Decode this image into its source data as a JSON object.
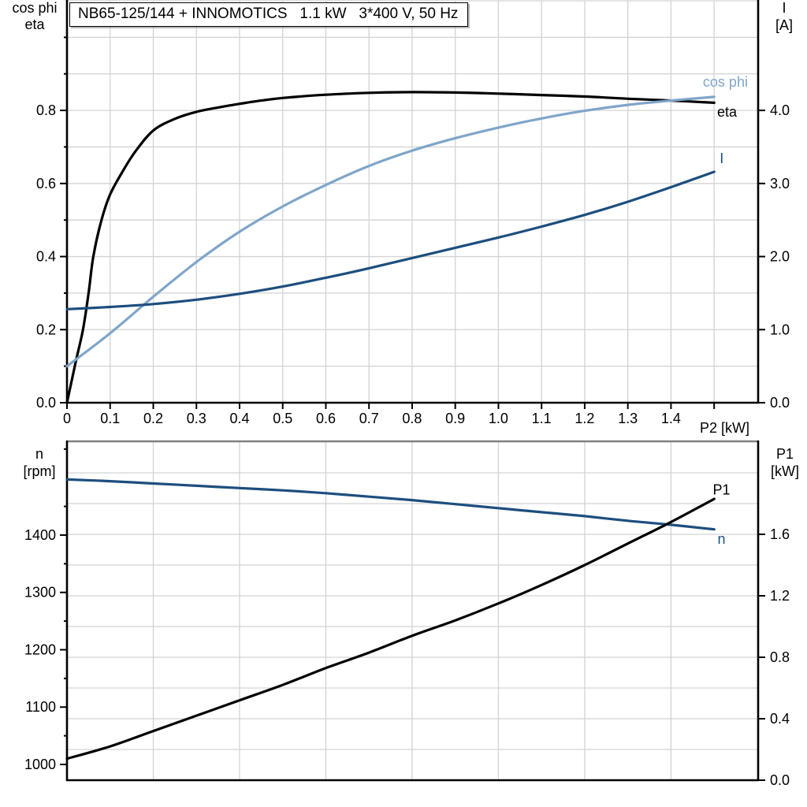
{
  "title": "NB65-125/144 + INNOMOTICS   1.1 kW   3*400 V, 50 Hz",
  "colors": {
    "black": "#000000",
    "light_blue": "#7FA5C9",
    "dark_blue": "#1C4E7E",
    "grid": "#D3D3D3",
    "plot_border_gray": "#808080"
  },
  "chart_data": [
    {
      "type": "line",
      "x_axis": {
        "label": "P2 [kW]",
        "range": [
          0,
          1.602
        ],
        "grid_interval": 0.1,
        "ticks": [
          0,
          0.1,
          0.2,
          0.3,
          0.4,
          0.5,
          0.6,
          0.7,
          0.8,
          0.9,
          1.0,
          1.1,
          1.2,
          1.3,
          1.4,
          1.5
        ],
        "tick_labels": [
          "0",
          "0.1",
          "0.2",
          "0.3",
          "0.4",
          "0.5",
          "0.6",
          "0.7",
          "0.8",
          "0.9",
          "1.0",
          "1.1",
          "1.2",
          "1.3",
          "1.4",
          ""
        ]
      },
      "left_axis": {
        "label_lines": [
          "cos phi",
          "eta"
        ],
        "range": [
          0,
          1.1
        ],
        "grid_interval": 0.1,
        "major_ticks": [
          0,
          0.2,
          0.4,
          0.6,
          0.8
        ],
        "tick_labels": [
          "0.0",
          "0.2",
          "0.4",
          "0.6",
          "0.8"
        ],
        "minor_ticks": [
          0.1,
          0.3,
          0.5,
          0.7,
          0.9,
          1.0
        ]
      },
      "right_axis": {
        "label_lines": [
          "I",
          "[A]"
        ],
        "range": [
          0,
          5.5
        ],
        "major_ticks": [
          0,
          1,
          2,
          3,
          4
        ],
        "tick_labels": [
          "0.0",
          "1.0",
          "2.0",
          "3.0",
          "4.0"
        ],
        "minor_ticks": []
      },
      "series": [
        {
          "name": "eta",
          "label": "eta",
          "color": "#000000",
          "axis": "left",
          "label_at": [
            1.507,
            0.783
          ],
          "points": [
            [
              0,
              0
            ],
            [
              0.02,
              0.11
            ],
            [
              0.037,
              0.2
            ],
            [
              0.05,
              0.3
            ],
            [
              0.061,
              0.4
            ],
            [
              0.08,
              0.5
            ],
            [
              0.1,
              0.57
            ],
            [
              0.13,
              0.635
            ],
            [
              0.16,
              0.69
            ],
            [
              0.2,
              0.745
            ],
            [
              0.25,
              0.777
            ],
            [
              0.3,
              0.796
            ],
            [
              0.35,
              0.808
            ],
            [
              0.4,
              0.818
            ],
            [
              0.45,
              0.827
            ],
            [
              0.5,
              0.834
            ],
            [
              0.6,
              0.843
            ],
            [
              0.7,
              0.848
            ],
            [
              0.8,
              0.85
            ],
            [
              0.9,
              0.849
            ],
            [
              1.0,
              0.846
            ],
            [
              1.1,
              0.842
            ],
            [
              1.2,
              0.838
            ],
            [
              1.3,
              0.832
            ],
            [
              1.4,
              0.827
            ],
            [
              1.5,
              0.821
            ]
          ]
        },
        {
          "name": "cos phi",
          "label": "cos phi",
          "color": "#7FA5C9",
          "axis": "left",
          "label_at": [
            1.474,
            0.865
          ],
          "points": [
            [
              0,
              0.1
            ],
            [
              0.1,
              0.19
            ],
            [
              0.2,
              0.29
            ],
            [
              0.3,
              0.385
            ],
            [
              0.4,
              0.468
            ],
            [
              0.5,
              0.537
            ],
            [
              0.6,
              0.596
            ],
            [
              0.7,
              0.648
            ],
            [
              0.8,
              0.69
            ],
            [
              0.9,
              0.724
            ],
            [
              1.0,
              0.753
            ],
            [
              1.1,
              0.778
            ],
            [
              1.2,
              0.799
            ],
            [
              1.3,
              0.815
            ],
            [
              1.4,
              0.827
            ],
            [
              1.5,
              0.837
            ]
          ]
        },
        {
          "name": "I",
          "label": "I",
          "color": "#1C4E7E",
          "axis": "right",
          "label_at": [
            1.513,
            3.28
          ],
          "points": [
            [
              0,
              1.28
            ],
            [
              0.1,
              1.31
            ],
            [
              0.2,
              1.35
            ],
            [
              0.3,
              1.41
            ],
            [
              0.4,
              1.49
            ],
            [
              0.5,
              1.59
            ],
            [
              0.6,
              1.71
            ],
            [
              0.7,
              1.84
            ],
            [
              0.8,
              1.98
            ],
            [
              0.9,
              2.12
            ],
            [
              1.0,
              2.26
            ],
            [
              1.1,
              2.41
            ],
            [
              1.2,
              2.57
            ],
            [
              1.3,
              2.75
            ],
            [
              1.4,
              2.95
            ],
            [
              1.5,
              3.16
            ]
          ]
        }
      ]
    },
    {
      "type": "line",
      "x_axis": {
        "label": "",
        "range": [
          0,
          1.602
        ],
        "grid_interval": 0.2,
        "ticks": [],
        "tick_labels": []
      },
      "left_axis": {
        "label_lines": [
          "n",
          "[rpm]"
        ],
        "range": [
          972.5,
          1563.5
        ],
        "major_ticks": [
          1000,
          1100,
          1200,
          1300,
          1400
        ],
        "tick_labels": [
          "1000",
          "1100",
          "1200",
          "1300",
          "1400"
        ],
        "minor_ticks": [
          1050,
          1150,
          1250,
          1350,
          1450,
          1550
        ]
      },
      "right_axis": {
        "label_lines": [
          "P1",
          "[kW]"
        ],
        "range": [
          0,
          2.205
        ],
        "grid_interval": 0.2,
        "major_ticks": [
          0,
          0.4,
          0.8,
          1.2,
          1.6
        ],
        "tick_labels": [
          "0.0",
          "0.4",
          "0.8",
          "1.2",
          "1.6"
        ],
        "minor_ticks": []
      },
      "series": [
        {
          "name": "n",
          "label": "n",
          "color": "#1C4E7E",
          "axis": "left",
          "label_at": [
            1.508,
            1385
          ],
          "points": [
            [
              0,
              1497
            ],
            [
              0.1,
              1494
            ],
            [
              0.2,
              1490
            ],
            [
              0.3,
              1486
            ],
            [
              0.4,
              1482
            ],
            [
              0.5,
              1478
            ],
            [
              0.6,
              1473
            ],
            [
              0.7,
              1467
            ],
            [
              0.8,
              1461
            ],
            [
              0.9,
              1454
            ],
            [
              1.0,
              1447
            ],
            [
              1.1,
              1440
            ],
            [
              1.2,
              1433
            ],
            [
              1.3,
              1425
            ],
            [
              1.4,
              1418
            ],
            [
              1.5,
              1410
            ]
          ]
        },
        {
          "name": "P1",
          "label": "P1",
          "color": "#000000",
          "axis": "right",
          "label_at": [
            1.497,
            1.86
          ],
          "points": [
            [
              0,
              0.14
            ],
            [
              0.1,
              0.22
            ],
            [
              0.2,
              0.32
            ],
            [
              0.3,
              0.42
            ],
            [
              0.4,
              0.52
            ],
            [
              0.5,
              0.62
            ],
            [
              0.6,
              0.73
            ],
            [
              0.7,
              0.83
            ],
            [
              0.8,
              0.94
            ],
            [
              0.9,
              1.04
            ],
            [
              1.0,
              1.15
            ],
            [
              1.1,
              1.27
            ],
            [
              1.2,
              1.4
            ],
            [
              1.3,
              1.54
            ],
            [
              1.4,
              1.68
            ],
            [
              1.5,
              1.83
            ]
          ]
        }
      ]
    }
  ]
}
